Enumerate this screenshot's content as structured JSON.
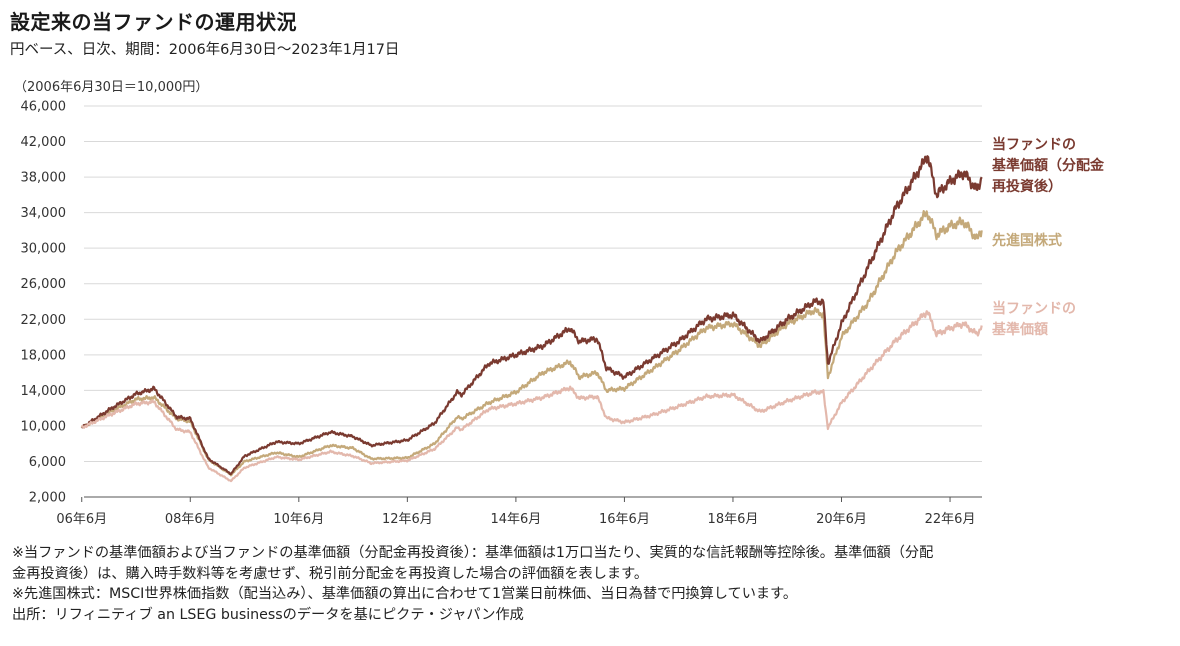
{
  "title": "設定来の当ファンドの運用状況",
  "subtitle": "円ベース、日次、期間：2006年6月30日～2023年1月17日",
  "y_unit_note": "（2006年6月30日＝10,000円）",
  "notes": [
    "※当ファンドの基準価額および当ファンドの基準価額（分配金再投資後）：基準価額は1万口当たり、実質的な信託報酬等控除後。基準価額（分配",
    "金再投資後）は、購入時手数料等を考慮せず、税引前分配金を再投資した場合の評価額を表します。",
    "※先進国株式：MSCI世界株価指数（配当込み）、基準価額の算出に合わせて1営業日前株価、当日為替で円換算しています。",
    "出所：リフィニティブ an LSEG businessのデータを基にピクテ・ジャパン作成"
  ],
  "chart_data": {
    "type": "line",
    "title": "設定来の当ファンドの運用状況",
    "xlabel": "",
    "ylabel": "",
    "ylim": [
      2000,
      46000
    ],
    "yticks": [
      2000,
      6000,
      10000,
      14000,
      18000,
      22000,
      26000,
      30000,
      34000,
      38000,
      42000,
      46000
    ],
    "ytick_labels": [
      "2,000",
      "6,000",
      "10,000",
      "14,000",
      "18,000",
      "22,000",
      "26,000",
      "30,000",
      "34,000",
      "38,000",
      "42,000",
      "46,000"
    ],
    "xlim": [
      "2006-06-30",
      "2023-01-17"
    ],
    "xticks": [
      "2006-06",
      "2008-06",
      "2010-06",
      "2012-06",
      "2014-06",
      "2016-06",
      "2018-06",
      "2020-06",
      "2022-06"
    ],
    "xtick_labels": [
      "06年6月",
      "08年6月",
      "10年6月",
      "12年6月",
      "14年6月",
      "16年6月",
      "18年6月",
      "20年6月",
      "22年6月"
    ],
    "grid": true,
    "legend": "right, next to line ends",
    "series": [
      {
        "name": "先進国株式",
        "legend_lines": [
          "先進国株式"
        ],
        "color": "#c4a97a",
        "x": [
          "2006-06",
          "2006-12",
          "2007-06",
          "2007-10",
          "2008-03",
          "2008-06",
          "2008-10",
          "2009-03",
          "2009-06",
          "2010-01",
          "2010-06",
          "2011-01",
          "2011-06",
          "2011-10",
          "2012-06",
          "2012-12",
          "2013-05",
          "2013-06",
          "2013-12",
          "2014-06",
          "2014-12",
          "2015-06",
          "2015-08",
          "2015-12",
          "2016-02",
          "2016-06",
          "2016-12",
          "2017-06",
          "2017-12",
          "2018-06",
          "2018-12",
          "2019-06",
          "2019-12",
          "2020-02",
          "2020-03",
          "2020-06",
          "2020-12",
          "2021-06",
          "2021-12",
          "2022-01",
          "2022-03",
          "2022-06",
          "2022-09",
          "2022-12",
          "2023-01"
        ],
        "values": [
          9800,
          11500,
          13000,
          13200,
          10800,
          10500,
          6200,
          4500,
          6000,
          7000,
          6500,
          7800,
          7500,
          6300,
          6400,
          8000,
          11000,
          10800,
          12600,
          13800,
          16000,
          17200,
          15500,
          16000,
          14000,
          14200,
          16300,
          18500,
          21000,
          21500,
          19000,
          21500,
          23000,
          22500,
          15500,
          20000,
          24000,
          29500,
          33500,
          34000,
          31500,
          32500,
          33000,
          31000,
          32000
        ]
      },
      {
        "name": "当ファンドの基準価額（分配金再投資後）",
        "legend_lines": [
          "当ファンドの",
          "基準価額（分配金",
          "再投資後）"
        ],
        "color": "#7a3a30",
        "x": [
          "2006-06",
          "2006-12",
          "2007-06",
          "2007-10",
          "2008-03",
          "2008-06",
          "2008-10",
          "2009-03",
          "2009-06",
          "2010-01",
          "2010-06",
          "2011-01",
          "2011-06",
          "2011-10",
          "2012-06",
          "2012-12",
          "2013-05",
          "2013-06",
          "2013-12",
          "2014-06",
          "2014-12",
          "2015-06",
          "2015-08",
          "2015-12",
          "2016-02",
          "2016-06",
          "2016-12",
          "2017-06",
          "2017-12",
          "2018-06",
          "2018-12",
          "2019-06",
          "2019-12",
          "2020-02",
          "2020-03",
          "2020-06",
          "2020-12",
          "2021-06",
          "2021-12",
          "2022-01",
          "2022-03",
          "2022-06",
          "2022-09",
          "2022-12",
          "2023-01"
        ],
        "values": [
          9800,
          11800,
          13600,
          14200,
          11000,
          10800,
          6300,
          4600,
          6600,
          8200,
          8000,
          9300,
          8800,
          7800,
          8400,
          10300,
          13800,
          13500,
          17000,
          18000,
          19000,
          21000,
          19500,
          19800,
          16500,
          15500,
          17500,
          19500,
          22000,
          22500,
          19500,
          22000,
          24000,
          24000,
          17000,
          21500,
          28000,
          34500,
          39500,
          40500,
          36000,
          37500,
          38500,
          36500,
          38000
        ]
      },
      {
        "name": "当ファンドの基準価額",
        "legend_lines": [
          "当ファンドの",
          "基準価額"
        ],
        "color": "#e3b8ac",
        "x": [
          "2006-06",
          "2006-12",
          "2007-06",
          "2007-10",
          "2008-03",
          "2008-06",
          "2008-10",
          "2009-03",
          "2009-06",
          "2010-01",
          "2010-06",
          "2011-01",
          "2011-06",
          "2011-10",
          "2012-06",
          "2012-12",
          "2013-05",
          "2013-06",
          "2013-12",
          "2014-06",
          "2014-12",
          "2015-06",
          "2015-08",
          "2015-12",
          "2016-02",
          "2016-06",
          "2016-12",
          "2017-06",
          "2017-12",
          "2018-06",
          "2018-12",
          "2019-06",
          "2019-12",
          "2020-02",
          "2020-03",
          "2020-06",
          "2020-12",
          "2021-06",
          "2021-12",
          "2022-01",
          "2022-03",
          "2022-06",
          "2022-09",
          "2022-12",
          "2023-01"
        ],
        "values": [
          9800,
          11200,
          12500,
          12700,
          9600,
          9300,
          5300,
          3800,
          5300,
          6500,
          6200,
          7100,
          6600,
          5800,
          6100,
          7400,
          9800,
          9600,
          11900,
          12500,
          13200,
          14300,
          13100,
          13300,
          10900,
          10400,
          11200,
          12200,
          13300,
          13500,
          11600,
          12800,
          13800,
          13800,
          9800,
          12600,
          16200,
          19600,
          22400,
          22900,
          20300,
          21000,
          21500,
          20300,
          21300
        ]
      }
    ]
  }
}
